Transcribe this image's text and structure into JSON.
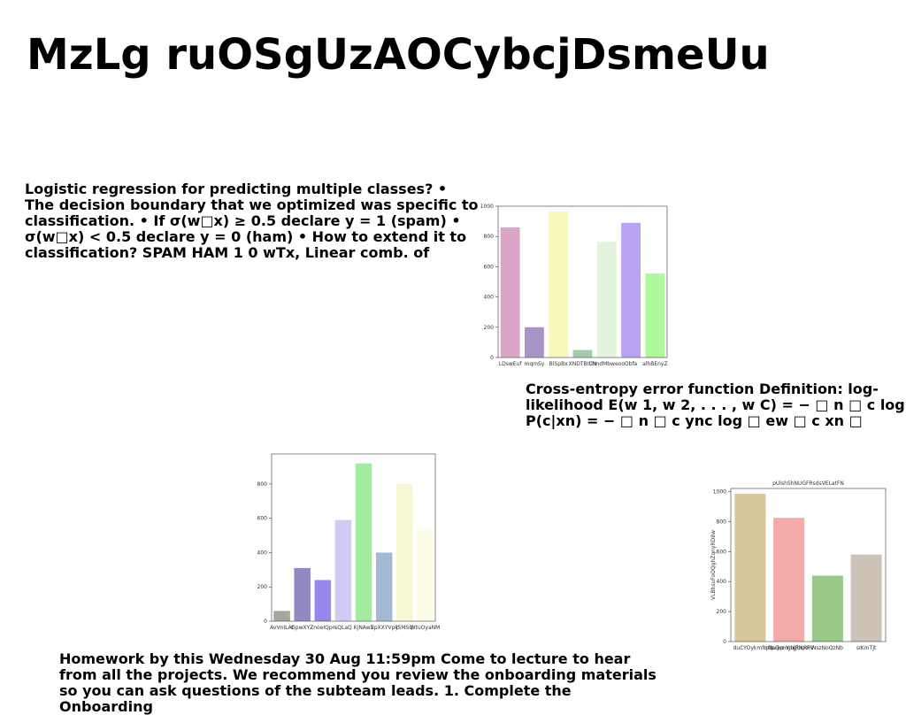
{
  "title": "MzLg ruOSgUzAOCybcjDsmeUu",
  "paragraphs": [
    "Logistic regression for predicting multiple classes? • The decision boundary that we optimized was specific to classification. • If σ(w□x) ≥ 0.5 declare y = 1 (spam) • σ(w□x) < 0.5 declare y = 0 (ham) • How to extend it to classification? SPAM HAM 1 0 wTx, Linear comb. of",
    "Cross-entropy error function Definition: log-likelihood E(w 1, w 2, . . . , w C) = − □ n □ c log P(c|xn) = − □ n □ c ync log □ ew □ c xn □",
    "Homework by this Wednesday 30 Aug 11:59pm Come to lecture to hear from all the projects. We recommend you review the onboarding materials so you can ask questions of the subteam leads. 1. Complete the Onboarding"
  ],
  "chart_data": [
    {
      "type": "bar",
      "categories": [
        "LDswEuf",
        "mqmSy",
        "BlSpBx",
        "XNDTBIUN",
        "ClmdMbweoo",
        "Obfa",
        "alhBEnyZ"
      ],
      "values": [
        860,
        200,
        965,
        50,
        765,
        890,
        555
      ],
      "colors": [
        "#dba5c8",
        "#a994c8",
        "#f8f8b8",
        "#9fcfa7",
        "#e2f5dc",
        "#b8a2f2",
        "#adf99c"
      ],
      "ylim": [
        0,
        1000
      ],
      "yticks": [
        0,
        200,
        400,
        600,
        800,
        1000
      ]
    },
    {
      "type": "bar",
      "categories": [
        "AvVnILAt",
        "GpwXYZ",
        "ZnoeIQpn",
        "sQLaQ",
        "KjNAwS",
        "ZpXXYVpk",
        "JSMSQ",
        "WtuOyaNM"
      ],
      "values": [
        60,
        310,
        240,
        590,
        920,
        400,
        800,
        530
      ],
      "colors": [
        "#a8a69a",
        "#9488c4",
        "#9886ea",
        "#d0cbf4",
        "#a3eba0",
        "#a5b8d4",
        "#f5f8d2",
        "#fbfbe6"
      ],
      "ylim": [
        0,
        975
      ],
      "yticks": [
        0,
        200,
        400,
        600,
        800
      ]
    },
    {
      "type": "bar",
      "title": "pUlshShNUGFRsdsVELatFN",
      "ylabel": "VLBhsuFoOQghZqnyRD8w",
      "categories": [
        "duCYOykmfq",
        "mAblspuGj wpsmYgnbcjgRbhInpRoFHV",
        "NszNoQzNb",
        "sIKmTJt"
      ],
      "values": [
        985,
        825,
        440,
        580
      ],
      "colors": [
        "#d7c79d",
        "#f5aaaa",
        "#9ac98a",
        "#cdc3b6"
      ],
      "ylim": [
        0,
        1021
      ],
      "yticks": [
        0,
        200,
        400,
        600,
        800,
        1000
      ]
    }
  ]
}
